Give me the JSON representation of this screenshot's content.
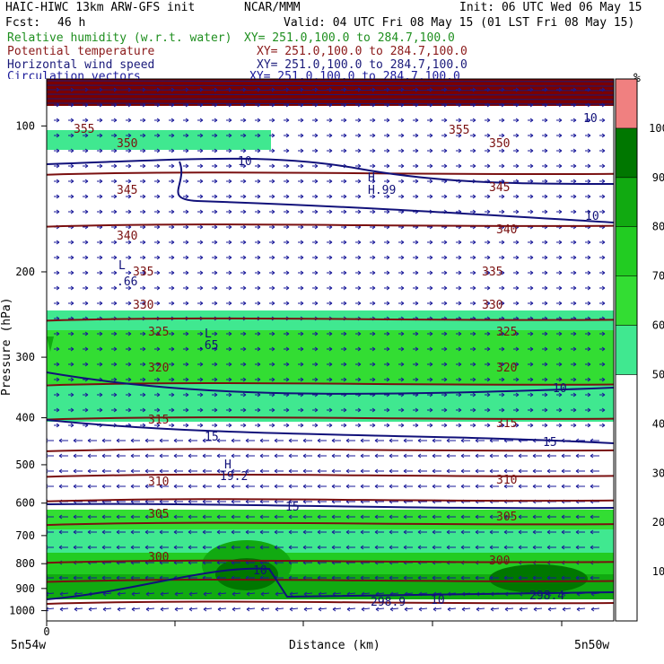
{
  "header": {
    "model": "HAIC-HIWC 13km ARW-GFS init",
    "org": "NCAR/MMM",
    "init": "Init: 06 UTC Wed 06 May 15",
    "fcst_label": "Fcst:",
    "fcst_value": "46 h",
    "valid": "Valid: 04 UTC Fri 08 May 15 (01 LST Fri 08 May 15)"
  },
  "fields": [
    {
      "label": "Relative humidity (w.r.t. water)",
      "xy": "XY= 251.0,100.0 to 284.7,100.0",
      "color": "#1f8f1f"
    },
    {
      "label": "Potential temperature",
      "xy": "XY= 251.0,100.0 to 284.7,100.0",
      "color": "#8b1a1a"
    },
    {
      "label": "Horizontal wind speed",
      "xy": "XY= 251.0,100.0 to 284.7,100.0",
      "color": "#1a1a7a"
    },
    {
      "label": "Circulation vectors",
      "xy": "XY= 251.0,100.0 to 284.7,100.0",
      "color": "#1a1a9a"
    }
  ],
  "chart_data": {
    "type": "heatmap",
    "ylabel": "Pressure (hPa)",
    "xlabel": "Distance (km)",
    "x_ticks": [
      "0"
    ],
    "x_end_labels": [
      "5n54w",
      "5n50w"
    ],
    "y_ticks": [
      100,
      200,
      300,
      400,
      500,
      600,
      700,
      800,
      900,
      1000
    ],
    "y_scale": "log",
    "ylim": [
      1050,
      80
    ],
    "colorbar": {
      "unit": "%",
      "ticks": [
        10,
        20,
        30,
        40,
        50,
        60,
        70,
        80,
        90,
        100
      ],
      "bands": [
        {
          "from": 0,
          "to": 50,
          "color": "#ffffff"
        },
        {
          "from": 50,
          "to": 60,
          "color": "#40e890"
        },
        {
          "from": 60,
          "to": 70,
          "color": "#33dd33"
        },
        {
          "from": 70,
          "to": 80,
          "color": "#22cc22"
        },
        {
          "from": 80,
          "to": 90,
          "color": "#11aa11"
        },
        {
          "from": 90,
          "to": 100,
          "color": "#007700"
        },
        {
          "from": 100,
          "to": 110,
          "color": "#f08080"
        }
      ]
    },
    "theta_labels": [
      "300",
      "305",
      "310",
      "315",
      "320",
      "325",
      "330",
      "335",
      "340",
      "345",
      "350",
      "355"
    ],
    "wind_labels": [
      "10",
      "10",
      "10",
      "15",
      "15",
      "15",
      "10"
    ],
    "extrema": [
      {
        "type": "H",
        "value": "H.99"
      },
      {
        "type": "L",
        "value": ".66"
      },
      {
        "type": "L",
        "value": ".65"
      },
      {
        "type": "H",
        "value": "19.2"
      },
      {
        "type": "L",
        "value": "298.9"
      },
      {
        "type": "L",
        "value": "298.4"
      }
    ]
  }
}
